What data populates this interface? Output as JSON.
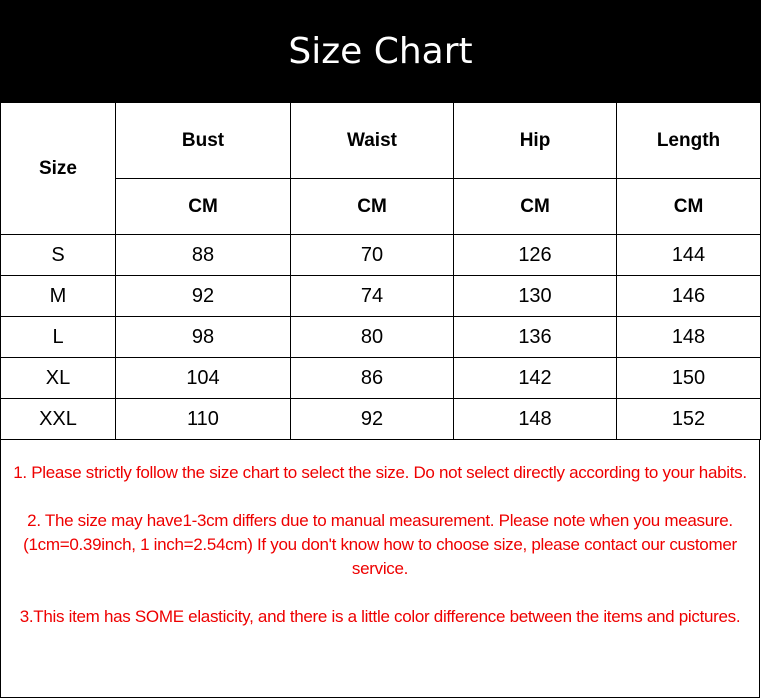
{
  "title": "Size Chart",
  "table": {
    "size_header": "Size",
    "columns": [
      {
        "label": "Bust",
        "unit": "CM"
      },
      {
        "label": "Waist",
        "unit": "CM"
      },
      {
        "label": "Hip",
        "unit": "CM"
      },
      {
        "label": "Length",
        "unit": "CM"
      }
    ],
    "rows": [
      {
        "size": "S",
        "values": [
          "88",
          "70",
          "126",
          "144"
        ]
      },
      {
        "size": "M",
        "values": [
          "92",
          "74",
          "130",
          "146"
        ]
      },
      {
        "size": "L",
        "values": [
          "98",
          "80",
          "136",
          "148"
        ]
      },
      {
        "size": "XL",
        "values": [
          "104",
          "86",
          "142",
          "150"
        ]
      },
      {
        "size": "XXL",
        "values": [
          "110",
          "92",
          "148",
          "152"
        ]
      }
    ]
  },
  "notes": [
    "1. Please strictly follow the size chart to select the size. Do not select directly according to your habits.",
    "2. The size may have1-3cm differs due to manual measurement. Please note when you measure.(1cm=0.39inch, 1 inch=2.54cm) If you don't know how to choose size, please contact our customer service.",
    "3.This item has SOME elasticity, and there is a little color difference between the items and pictures."
  ],
  "colors": {
    "header_bg": "#000000",
    "notes_text": "#ee0000"
  }
}
